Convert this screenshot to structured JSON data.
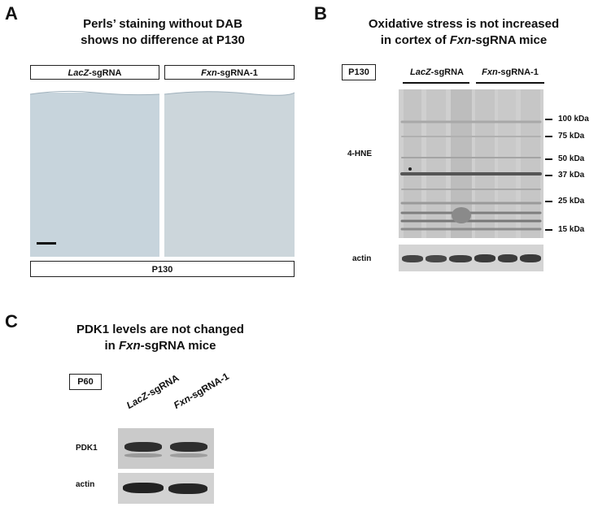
{
  "panel_a": {
    "letter": "A",
    "title_line1": "Perls’ staining without DAB",
    "title_line2": "shows no difference at P130",
    "left_label_italic": "LacZ",
    "left_label_rest": "-sgRNA",
    "right_label_italic": "Fxn",
    "right_label_rest": "-sgRNA-1",
    "bottom_label": "P130"
  },
  "panel_b": {
    "letter": "B",
    "title_line1": "Oxidative stress is not increased",
    "title_pre": "in cortex of ",
    "title_italic": "Fxn",
    "title_post": "-sgRNA mice",
    "timepoint": "P130",
    "group1_italic": "LacZ",
    "group1_rest": "-sgRNA",
    "group2_italic": "Fxn",
    "group2_rest": "-sgRNA-1",
    "row1_label": "4-HNE",
    "row2_label": "actin",
    "markers": [
      "100 kDa",
      "75 kDa",
      "50 kDa",
      "37 kDa",
      "25 kDa",
      "15 kDa"
    ]
  },
  "panel_c": {
    "letter": "C",
    "title_line1": "PDK1 levels are not changed",
    "title_pre": "in ",
    "title_italic": "Fxn",
    "title_post": "-sgRNA mice",
    "timepoint": "P60",
    "lane1_italic": "LacZ",
    "lane1_rest": "-sgRNA",
    "lane2_italic": "Fxn",
    "lane2_rest": "-sgRNA-1",
    "row1_label": "PDK1",
    "row2_label": "actin"
  }
}
